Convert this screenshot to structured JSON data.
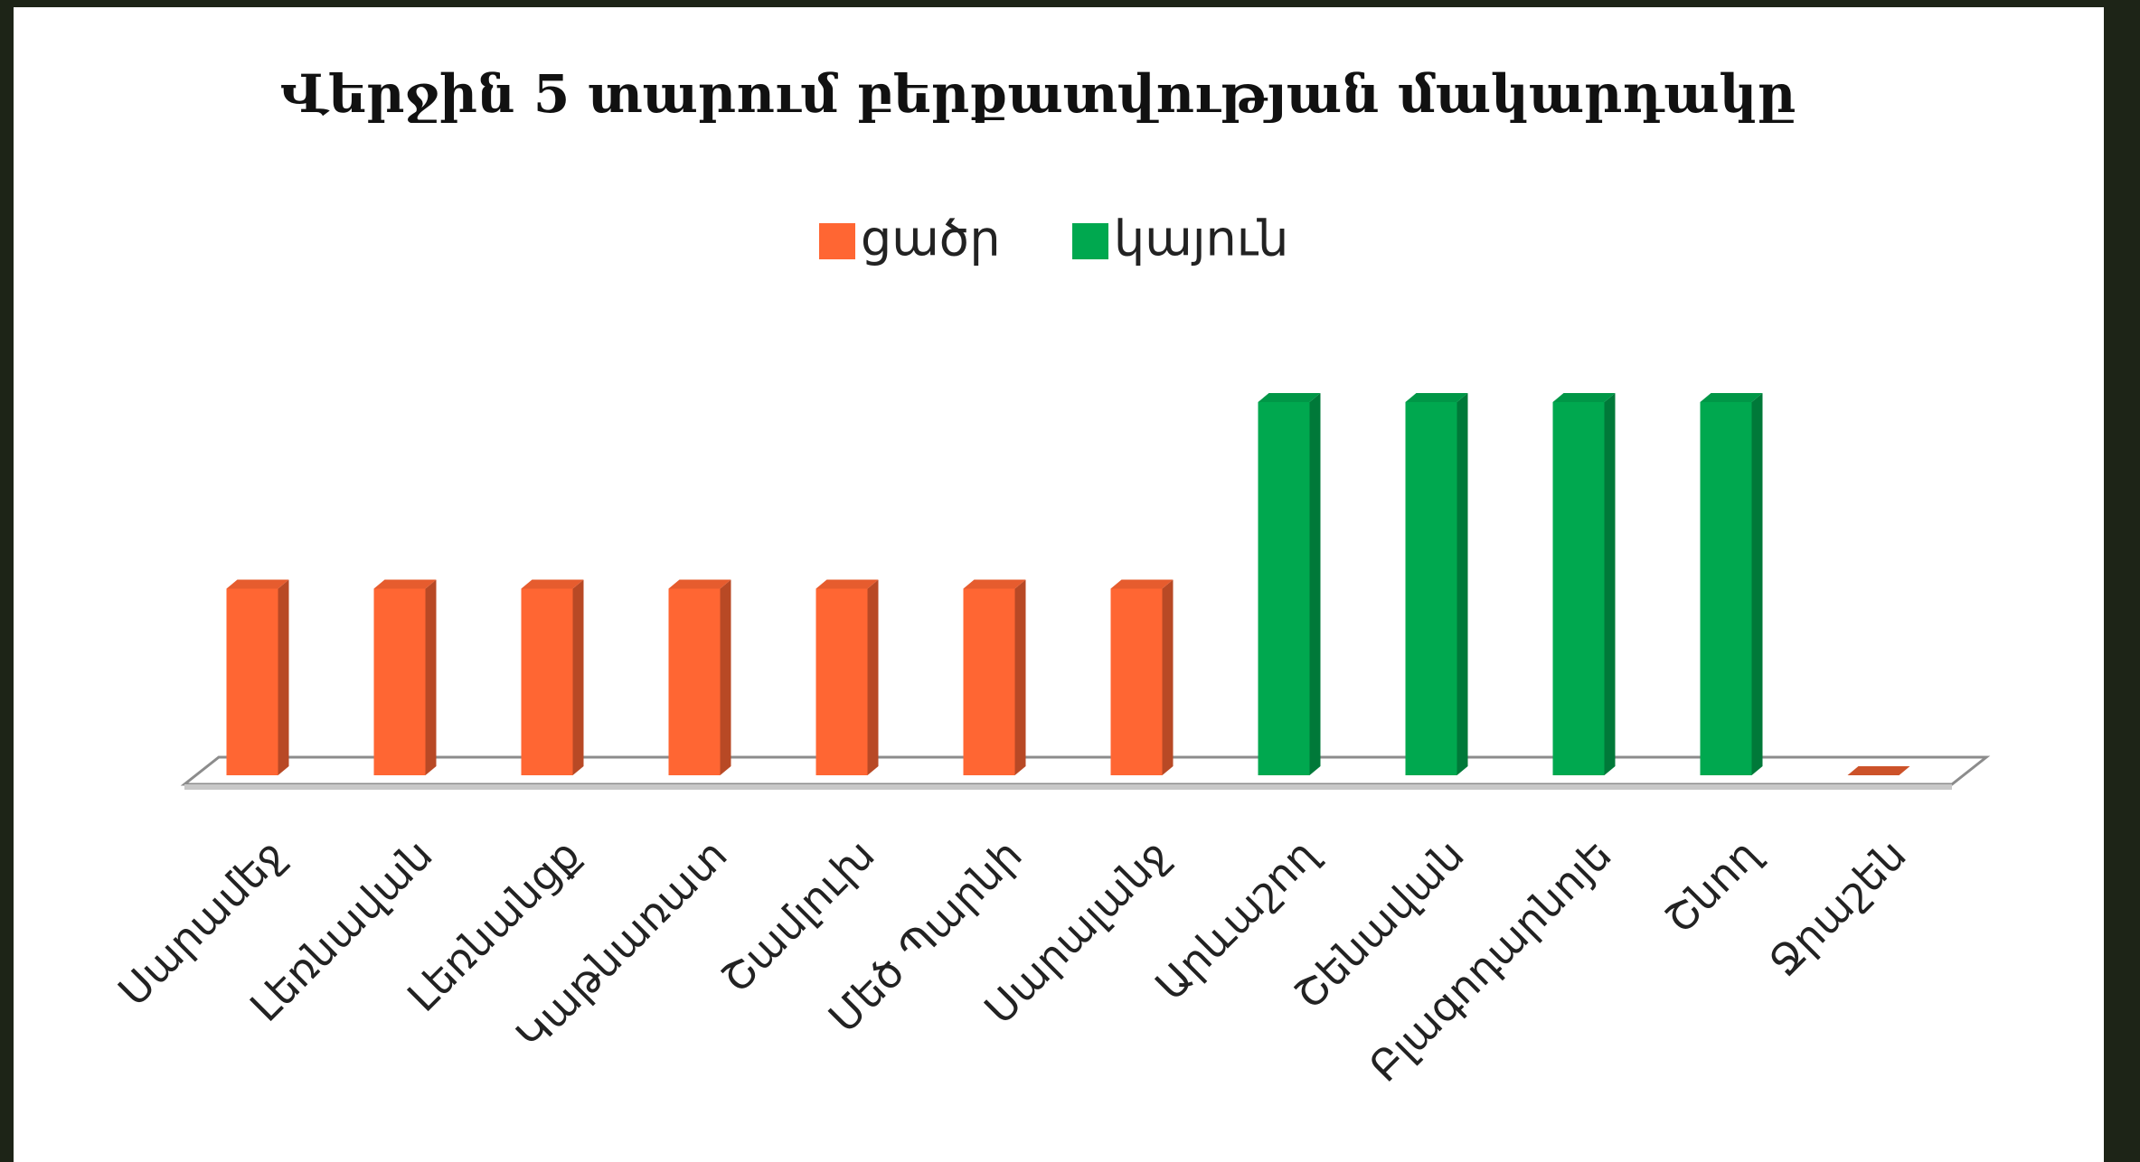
{
  "chart_data": {
    "type": "bar3d",
    "title": "Վերջին 5 տարում բերքատվության մակարդակը",
    "categories": [
      "Սարամեջ",
      "Լեռնավան",
      "Լեռնանցք",
      "Կաթնառատ",
      "Շամլուխ",
      "Մեծ Պարնի",
      "Սարալանջ",
      "Արևաշող",
      "Շենավան",
      "Բլագոդարնոյե",
      "Շնող",
      "Ջրաշեն"
    ],
    "series": [
      {
        "name": "ցածր",
        "color": "#ff6633",
        "values": [
          1,
          1,
          1,
          1,
          1,
          1,
          1,
          null,
          null,
          null,
          null,
          0
        ]
      },
      {
        "name": "կայուն",
        "color": "#00a84f",
        "values": [
          null,
          null,
          null,
          null,
          null,
          null,
          null,
          2,
          2,
          2,
          2,
          null
        ]
      }
    ],
    "legend": "top"
  }
}
